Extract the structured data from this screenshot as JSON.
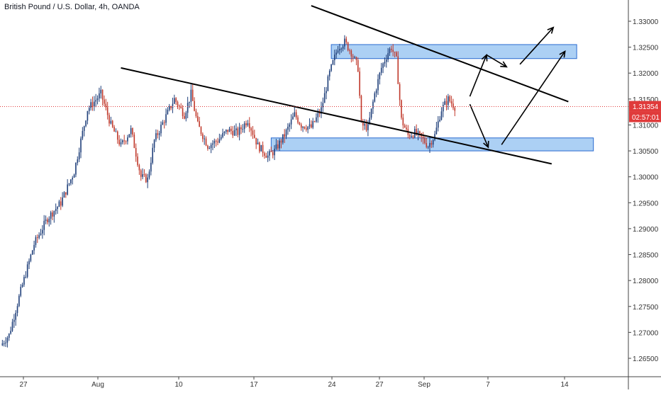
{
  "header": {
    "symbol_title": "British Pound / U.S. Dollar, 4h, OANDA"
  },
  "price_axis": {
    "ticks": [
      "1.33000",
      "1.32500",
      "1.32000",
      "1.31500",
      "1.31000",
      "1.30500",
      "1.30000",
      "1.29500",
      "1.29000",
      "1.28500",
      "1.28000",
      "1.27500",
      "1.27000",
      "1.26500"
    ],
    "current_price_label": "1.31354",
    "countdown_label": "02:57:01"
  },
  "time_axis": {
    "labels": [
      "27",
      "Aug",
      "10",
      "17",
      "24",
      "27",
      "Sep",
      "7",
      "14"
    ]
  },
  "colors": {
    "up_candle": "#1f3f7a",
    "down_candle": "#c0392b",
    "price_line": "#e03b3b",
    "zone_fill": "#90c0f0",
    "zone_border": "#2a6ad0",
    "trend_line": "#000000",
    "axis_border": "#444444",
    "tick_text": "#333333"
  },
  "chart_data": {
    "type": "candlestick",
    "title": "British Pound / U.S. Dollar, 4h, OANDA",
    "interval": "4h",
    "ylim": [
      1.2625,
      1.3335
    ],
    "last_price": 1.31354,
    "grid": false,
    "close_path": [
      [
        0,
        1.2675
      ],
      [
        5,
        1.2695
      ],
      [
        12,
        1.278
      ],
      [
        20,
        1.287
      ],
      [
        28,
        1.292
      ],
      [
        36,
        1.295
      ],
      [
        44,
        1.301
      ],
      [
        52,
        1.313
      ],
      [
        60,
        1.316
      ],
      [
        66,
        1.31
      ],
      [
        72,
        1.306
      ],
      [
        78,
        1.309
      ],
      [
        84,
        1.3
      ],
      [
        88,
        1.2995
      ],
      [
        92,
        1.307
      ],
      [
        98,
        1.311
      ],
      [
        104,
        1.315
      ],
      [
        110,
        1.312
      ],
      [
        114,
        1.316
      ],
      [
        118,
        1.31
      ],
      [
        124,
        1.306
      ],
      [
        130,
        1.307
      ],
      [
        136,
        1.309
      ],
      [
        142,
        1.3085
      ],
      [
        148,
        1.311
      ],
      [
        154,
        1.306
      ],
      [
        160,
        1.304
      ],
      [
        164,
        1.305
      ],
      [
        170,
        1.308
      ],
      [
        176,
        1.312
      ],
      [
        180,
        1.31
      ],
      [
        186,
        1.3095
      ],
      [
        192,
        1.313
      ],
      [
        197,
        1.32
      ],
      [
        202,
        1.325
      ],
      [
        206,
        1.326
      ],
      [
        210,
        1.324
      ],
      [
        214,
        1.321
      ],
      [
        216,
        1.31
      ],
      [
        220,
        1.3095
      ],
      [
        224,
        1.316
      ],
      [
        228,
        1.321
      ],
      [
        232,
        1.324
      ],
      [
        234,
        1.325
      ],
      [
        237,
        1.3225
      ],
      [
        240,
        1.311
      ],
      [
        244,
        1.308
      ],
      [
        248,
        1.3085
      ],
      [
        252,
        1.3075
      ],
      [
        256,
        1.306
      ],
      [
        260,
        1.308
      ],
      [
        264,
        1.313
      ],
      [
        268,
        1.315
      ],
      [
        272,
        1.3135
      ]
    ],
    "zones": [
      {
        "start": 198,
        "end": 345,
        "low": 1.3228,
        "high": 1.3255
      },
      {
        "start": 162,
        "end": 355,
        "low": 1.305,
        "high": 1.3075
      }
    ],
    "trend_lines": [
      {
        "p1": [
          72,
          1.321
        ],
        "p2": [
          330,
          1.3025
        ]
      },
      {
        "p1": [
          186,
          1.333
        ],
        "p2": [
          340,
          1.3145
        ]
      }
    ],
    "arrows": [
      {
        "from": [
          281,
          1.3155
        ],
        "to": [
          291,
          1.3235
        ]
      },
      {
        "from": [
          291,
          1.3235
        ],
        "to": [
          303,
          1.3212
        ]
      },
      {
        "from": [
          311,
          1.3217
        ],
        "to": [
          331,
          1.3288
        ]
      },
      {
        "from": [
          281,
          1.314
        ],
        "to": [
          292,
          1.3057
        ]
      },
      {
        "from": [
          300,
          1.3062
        ],
        "to": [
          338,
          1.3242
        ]
      }
    ]
  }
}
